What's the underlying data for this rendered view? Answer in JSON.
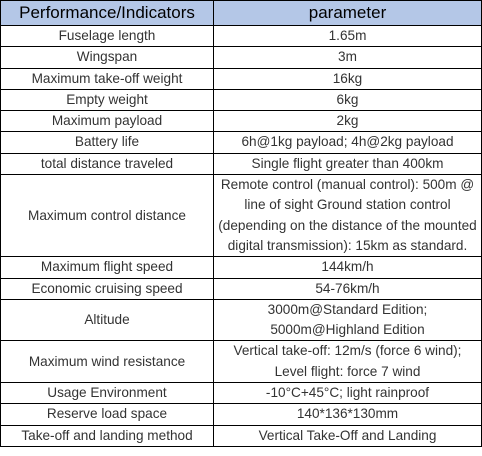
{
  "table": {
    "header": [
      "Performance/Indicators",
      "parameter"
    ],
    "rows": [
      [
        "Fuselage length",
        "1.65m"
      ],
      [
        "Wingspan",
        "3m"
      ],
      [
        "Maximum take-off weight",
        "16kg"
      ],
      [
        "Empty weight",
        "6kg"
      ],
      [
        "Maximum payload",
        "2kg"
      ],
      [
        "Battery life",
        "6h@1kg payload; 4h@2kg payload"
      ],
      [
        "total distance traveled",
        "Single flight greater than 400km"
      ],
      [
        "Maximum control distance",
        "Remote control (manual control): 500m @ line of sight Ground station control (depending on the distance of the mounted digital transmission): 15km as standard."
      ],
      [
        "Maximum flight speed",
        "144km/h"
      ],
      [
        "Economic cruising speed",
        "54-76km/h"
      ],
      [
        "Altitude",
        "3000m@Standard Edition; 5000m@Highland Edition"
      ],
      [
        "Maximum wind resistance",
        "Vertical take-off: 12m/s (force 6 wind); Level flight: force 7 wind"
      ],
      [
        "Usage Environment",
        "-10°C+45°C; light rainproof"
      ],
      [
        "Reserve load space",
        "140*136*130mm"
      ],
      [
        "Take-off and landing method",
        "Vertical Take-Off and Landing"
      ]
    ]
  }
}
